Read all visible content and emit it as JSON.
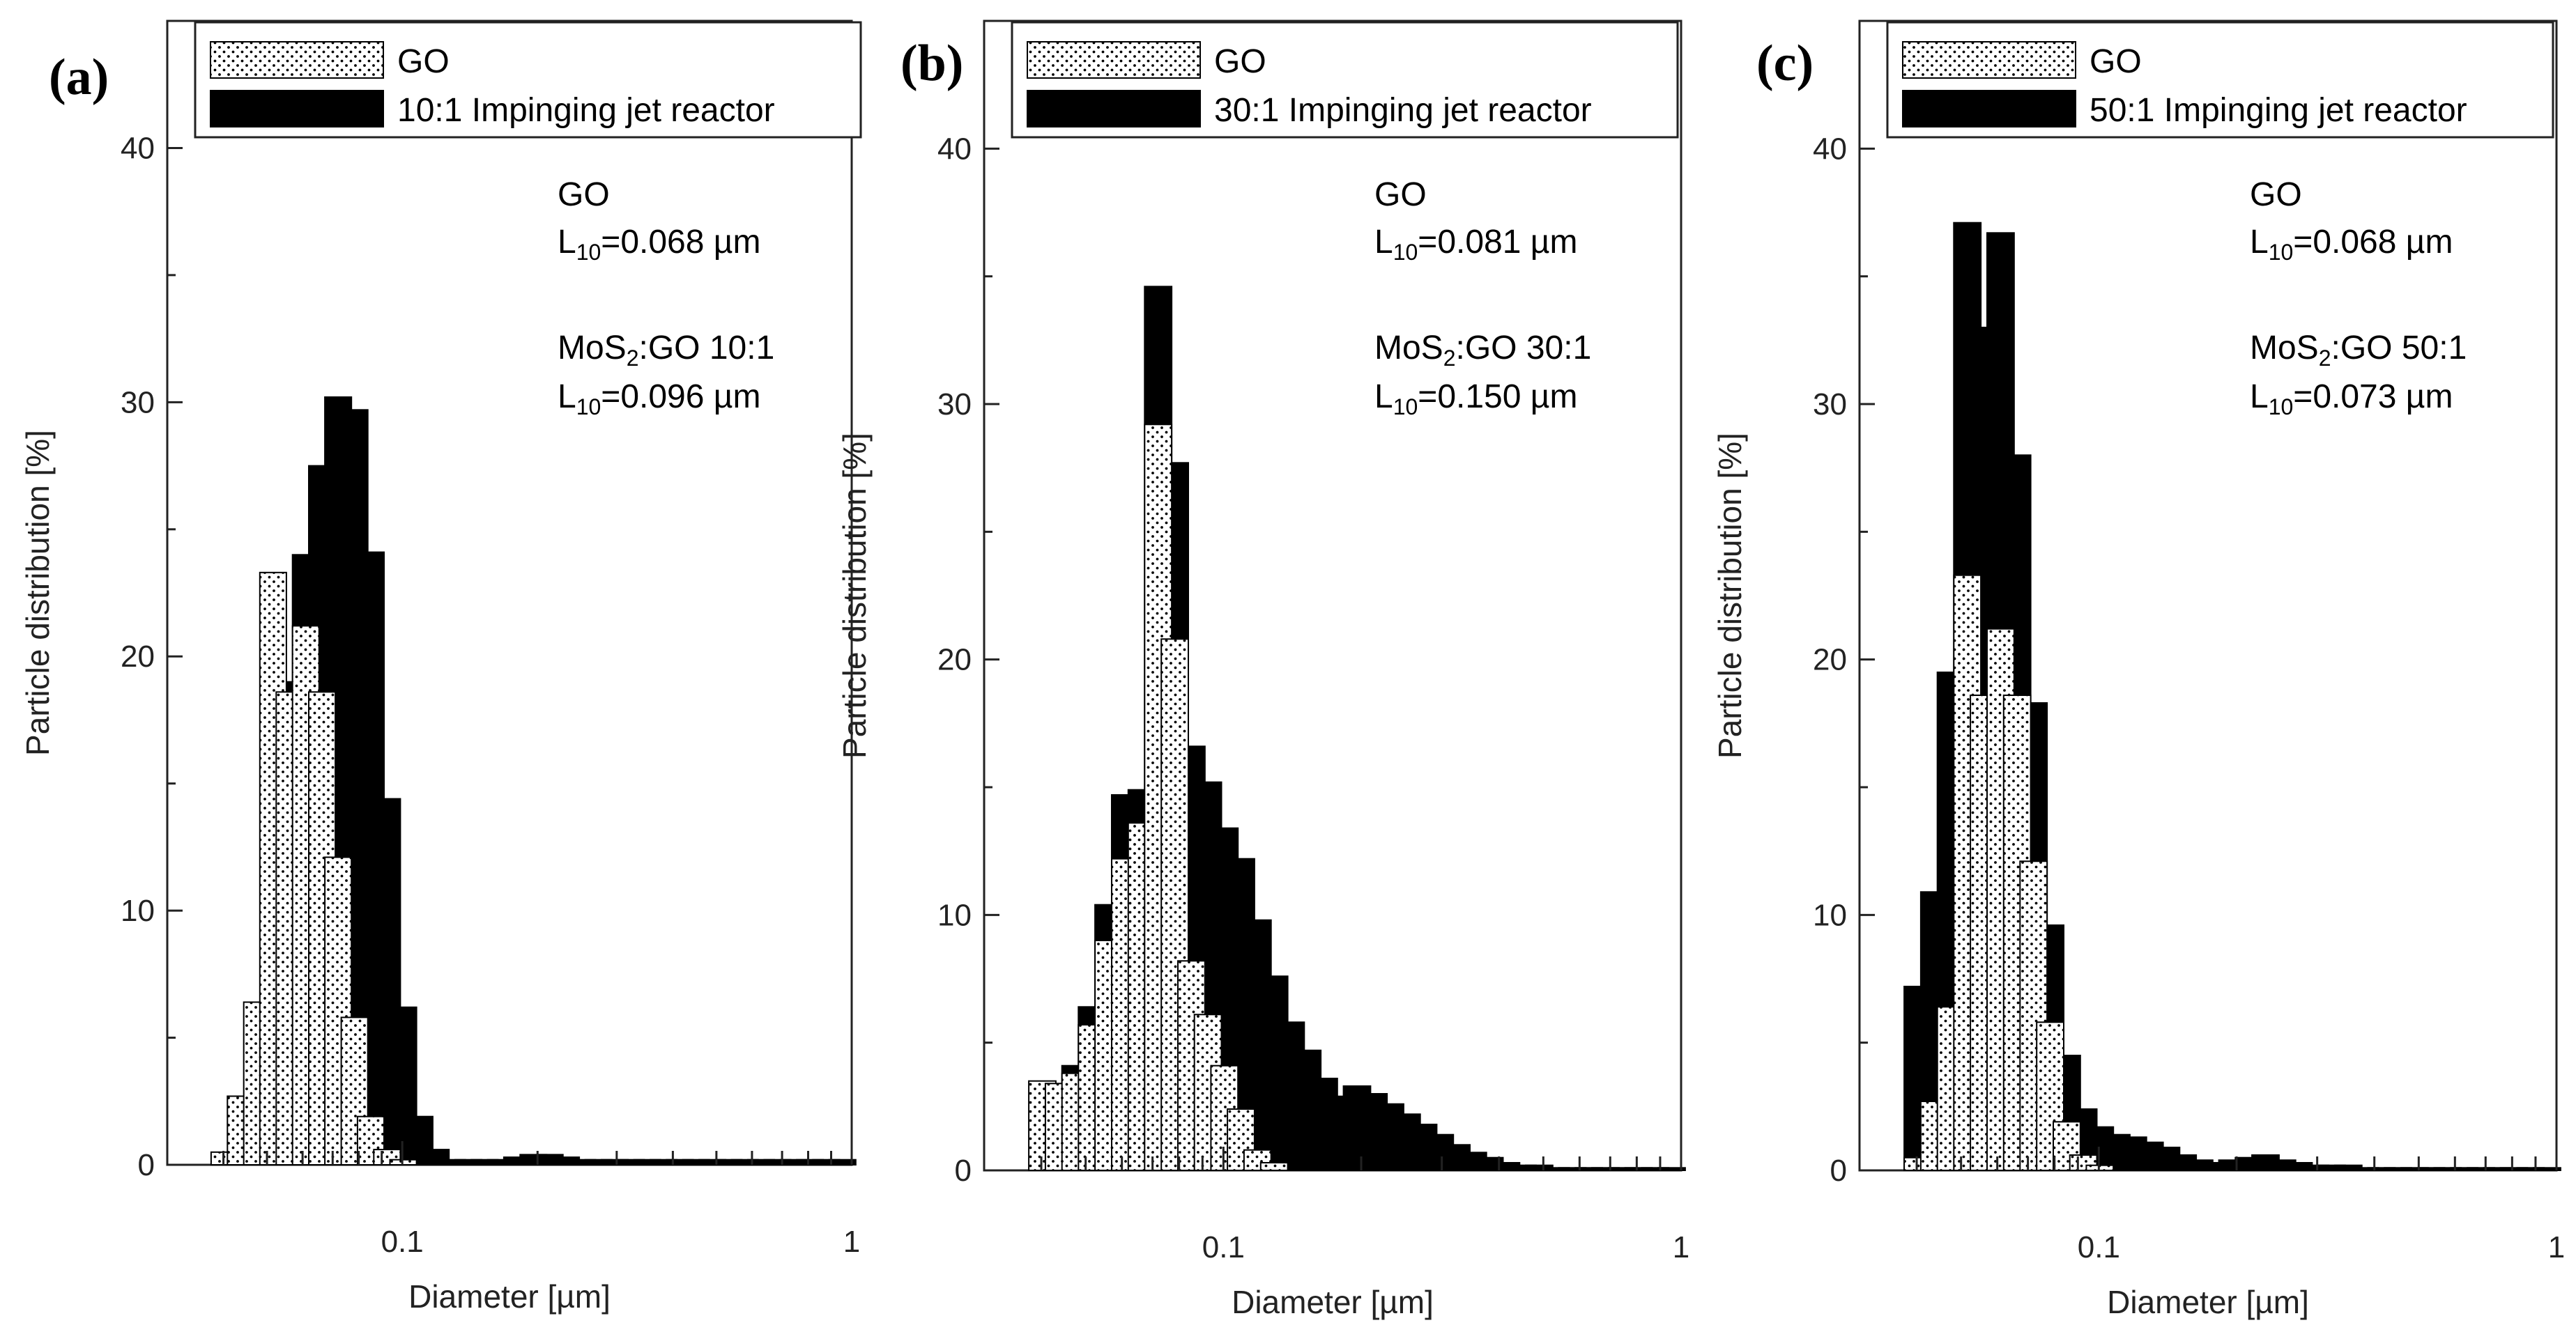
{
  "chart_data": [
    {
      "type": "bar",
      "panel_label": "(a)",
      "xscale": "log",
      "xlim": [
        0.03,
        1
      ],
      "ylim": [
        0,
        45
      ],
      "xlabel": "Diameter [µm]",
      "ylabel": "Particle distribution [%]",
      "xtick_labels": [
        "0.1",
        "1"
      ],
      "yticks": [
        0,
        10,
        20,
        30,
        40
      ],
      "legend": [
        "GO",
        "10:1 Impinging jet reactor"
      ],
      "annotations": {
        "go_name": "GO",
        "go_l10_letter": "L",
        "go_l10_sub": "10",
        "go_l10_value": "=0.068 µm",
        "mos_prefix": "MoS",
        "mos_sub": "2",
        "mos_suffix": ":GO 10:1",
        "mos_l10_letter": "L",
        "mos_l10_sub": "10",
        "mos_l10_value": "=0.096 µm"
      },
      "bin_centers": [
        0.0402,
        0.0437,
        0.0475,
        0.0516,
        0.0561,
        0.061,
        0.0663,
        0.072,
        0.0783,
        0.0851,
        0.0925,
        0.1005,
        0.1092,
        0.1187,
        0.1291,
        0.1403,
        0.1525,
        0.1657,
        0.1801,
        0.1958,
        0.2128,
        0.2313,
        0.2514,
        0.2732,
        0.297,
        0.3228,
        0.3508,
        0.3813,
        0.4145,
        0.4505,
        0.4897,
        0.5322,
        0.5785,
        0.6288,
        0.6834,
        0.7428,
        0.8074,
        0.8776,
        0.9538
      ],
      "series": [
        {
          "name": "GO",
          "values": [
            0.5,
            2.7,
            6.4,
            23.3,
            18.6,
            21.2,
            18.6,
            12.1,
            5.8,
            1.9,
            0.6,
            0.2,
            0,
            0,
            0,
            0,
            0,
            0,
            0,
            0,
            0,
            0,
            0,
            0,
            0,
            0,
            0,
            0,
            0,
            0,
            0,
            0,
            0,
            0,
            0,
            0,
            0,
            0,
            0
          ]
        },
        {
          "name": "10:1 Impinging jet reactor",
          "values": [
            0,
            0,
            0,
            0,
            19.0,
            24.0,
            27.5,
            30.2,
            29.7,
            24.1,
            14.4,
            6.2,
            1.9,
            0.6,
            0.2,
            0.2,
            0.2,
            0.2,
            0.3,
            0.4,
            0.4,
            0.3,
            0.2,
            0.2,
            0.2,
            0.2,
            0.2,
            0.2,
            0.2,
            0.2,
            0.2,
            0.2,
            0.2,
            0.2,
            0.2,
            0.2,
            0.2,
            0.2,
            0.2
          ]
        }
      ]
    },
    {
      "type": "bar",
      "panel_label": "(b)",
      "xscale": "log",
      "xlim": [
        0.03,
        1
      ],
      "ylim": [
        0,
        45
      ],
      "xlabel": "Diameter [µm]",
      "ylabel": "Particle distribution [%]",
      "xtick_labels": [
        "0.1",
        "1"
      ],
      "yticks": [
        0,
        10,
        20,
        30,
        40
      ],
      "legend": [
        "GO",
        "30:1 Impinging jet reactor"
      ],
      "annotations": {
        "go_name": "GO",
        "go_l10_letter": "L",
        "go_l10_sub": "10",
        "go_l10_value": "=0.081 µm",
        "mos_prefix": "MoS",
        "mos_sub": "2",
        "mos_suffix": ":GO 30:1",
        "mos_l10_letter": "L",
        "mos_l10_sub": "10",
        "mos_l10_value": "=0.150 µm"
      },
      "bin_centers": [
        0.0402,
        0.0437,
        0.0475,
        0.0516,
        0.0561,
        0.061,
        0.0663,
        0.072,
        0.0783,
        0.0851,
        0.0925,
        0.1005,
        0.1092,
        0.1187,
        0.1291,
        0.1403,
        0.1525,
        0.1657,
        0.1801,
        0.1958,
        0.2128,
        0.2313,
        0.2514,
        0.2732,
        0.297,
        0.3228,
        0.3508,
        0.3813,
        0.4145,
        0.4505,
        0.4897,
        0.5322,
        0.5785,
        0.6288,
        0.6834,
        0.7428,
        0.8074,
        0.8776,
        0.9538
      ],
      "series": [
        {
          "name": "GO",
          "values": [
            3.5,
            3.4,
            3.8,
            5.7,
            9.0,
            12.2,
            13.6,
            29.2,
            20.8,
            8.2,
            6.1,
            4.1,
            2.4,
            0.8,
            0.3,
            0,
            0,
            0,
            0,
            0,
            0,
            0,
            0,
            0,
            0,
            0,
            0,
            0,
            0,
            0,
            0,
            0,
            0,
            0,
            0,
            0,
            0,
            0,
            0
          ]
        },
        {
          "name": "30:1 Impinging jet reactor",
          "values": [
            0,
            0,
            4.1,
            6.4,
            10.4,
            14.7,
            14.9,
            34.6,
            27.7,
            16.6,
            15.2,
            13.4,
            12.2,
            9.8,
            7.6,
            5.8,
            4.7,
            3.6,
            2.9,
            3.3,
            3.0,
            2.6,
            2.2,
            1.8,
            1.4,
            1.0,
            0.7,
            0.5,
            0.3,
            0.2,
            0.2,
            0.1,
            0.1,
            0.1,
            0.1,
            0.1,
            0.1,
            0.1,
            0.1
          ]
        }
      ]
    },
    {
      "type": "bar",
      "panel_label": "(c)",
      "xscale": "log",
      "xlim": [
        0.03,
        1
      ],
      "ylim": [
        0,
        45
      ],
      "xlabel": "Diameter [µm]",
      "ylabel": "Particle distribution [%]",
      "xtick_labels": [
        "0.1",
        "1"
      ],
      "yticks": [
        0,
        10,
        20,
        30,
        40
      ],
      "legend": [
        "GO",
        "50:1 Impinging jet reactor"
      ],
      "annotations": {
        "go_name": "GO",
        "go_l10_letter": "L",
        "go_l10_sub": "10",
        "go_l10_value": "=0.068 µm",
        "mos_prefix": "MoS",
        "mos_sub": "2",
        "mos_suffix": ":GO 50:1",
        "mos_l10_letter": "L",
        "mos_l10_sub": "10",
        "mos_l10_value": "=0.073 µm"
      },
      "bin_centers": [
        0.0402,
        0.0437,
        0.0475,
        0.0516,
        0.0561,
        0.061,
        0.0663,
        0.072,
        0.0783,
        0.0851,
        0.0925,
        0.1005,
        0.1092,
        0.1187,
        0.1291,
        0.1403,
        0.1525,
        0.1657,
        0.1801,
        0.1958,
        0.2128,
        0.2313,
        0.2514,
        0.2732,
        0.297,
        0.3228,
        0.3508,
        0.3813,
        0.4145,
        0.4505,
        0.4897,
        0.5322,
        0.5785,
        0.6288,
        0.6834,
        0.7428,
        0.8074,
        0.8776,
        0.9538
      ],
      "series": [
        {
          "name": "GO",
          "values": [
            0.5,
            2.7,
            6.4,
            23.3,
            18.6,
            21.2,
            18.6,
            12.1,
            5.8,
            1.9,
            0.6,
            0.2,
            0,
            0,
            0,
            0,
            0,
            0,
            0,
            0,
            0,
            0,
            0,
            0,
            0,
            0,
            0,
            0,
            0,
            0,
            0,
            0,
            0,
            0,
            0,
            0,
            0,
            0,
            0
          ]
        },
        {
          "name": "50:1 Impinging jet reactor",
          "values": [
            7.2,
            10.9,
            19.5,
            37.1,
            33.0,
            36.7,
            28.0,
            18.3,
            9.6,
            4.5,
            2.4,
            1.7,
            1.4,
            1.3,
            1.1,
            0.9,
            0.6,
            0.4,
            0.3,
            0.4,
            0.5,
            0.6,
            0.4,
            0.3,
            0.2,
            0.2,
            0.2,
            0.1,
            0.1,
            0.1,
            0.1,
            0.1,
            0.1,
            0.1,
            0.1,
            0.1,
            0.1,
            0.1,
            0.1
          ]
        }
      ]
    }
  ]
}
